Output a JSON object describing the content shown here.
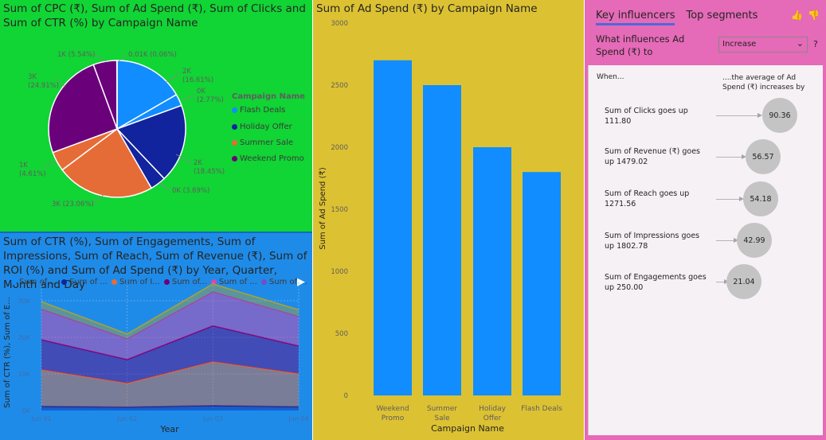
{
  "pie": {
    "title": "Sum of CPC (₹), Sum of Ad Spend (₹), Sum of Clicks and Sum of CTR (%) by Campaign Name",
    "legend_title": "Campaign Name",
    "legend": [
      {
        "label": "Flash Deals",
        "color": "#118dff"
      },
      {
        "label": "Holiday Offer",
        "color": "#12239e"
      },
      {
        "label": "Summer Sale",
        "color": "#e66c37"
      },
      {
        "label": "Weekend Promo",
        "color": "#6b007b"
      }
    ],
    "labels": [
      {
        "line1": "1K (5.54%)",
        "line2": ""
      },
      {
        "line1": "0.01K (0.06%)",
        "line2": ""
      },
      {
        "line1": "2K",
        "line2": "(16.61%)"
      },
      {
        "line1": "0K",
        "line2": "(2.77%)"
      },
      {
        "line1": "3K",
        "line2": "(24.91%)"
      },
      {
        "line1": "2K",
        "line2": "(18.45%)"
      },
      {
        "line1": "1K",
        "line2": "(4.61%)"
      },
      {
        "line1": "0K (3.69%)",
        "line2": ""
      },
      {
        "line1": "3K (23.06%)",
        "line2": ""
      }
    ]
  },
  "area": {
    "title": "Sum of CTR (%), Sum of Engagements, Sum of Impressions, Sum of Reach, Sum of Revenue (₹), Sum of ROI (%) and Sum of Ad Spend (₹) by Year, Quarter, Month and Day",
    "legend": [
      {
        "label": "Sum of ...",
        "color": "#118dff"
      },
      {
        "label": "Sum of ...",
        "color": "#12239e"
      },
      {
        "label": "Sum of I...",
        "color": "#e66c37"
      },
      {
        "label": "Sum of...",
        "color": "#6b007b"
      },
      {
        "label": "Sum of ...",
        "color": "#e044a7"
      },
      {
        "label": "Sum of ...",
        "color": "#744ec2"
      }
    ],
    "more_glyph": "▶",
    "ylabel": "Sum of CTR (%), Sum of E...",
    "xlabel": "Year",
    "yticks": [
      "0K",
      "10K",
      "20K",
      "30K"
    ],
    "xticks": [
      "Jun 01",
      "Jun 02",
      "Jun 03",
      "Jun 04"
    ]
  },
  "bar": {
    "title": "Sum of Ad Spend (₹) by Campaign Name",
    "ylabel": "Sum of Ad Spend (₹)",
    "xlabel": "Campaign Name",
    "yticks": [
      "0",
      "500",
      "1000",
      "1500",
      "2000",
      "2500",
      "3000"
    ],
    "category_lines": [
      [
        "Weekend",
        "Promo"
      ],
      [
        "Summer",
        "Sale"
      ],
      [
        "Holiday",
        "Offer"
      ],
      [
        "Flash Deals"
      ]
    ]
  },
  "chart_data": [
    {
      "type": "pie",
      "title": "Sum of CPC (₹), Sum of Ad Spend (₹), Sum of Clicks and Sum of CTR (%) by Campaign Name",
      "legend_title": "Campaign Name",
      "legend_placement": "right",
      "slices": [
        {
          "campaign": "Flash Deals",
          "value_label": "2K",
          "percent": 16.61,
          "color": "#118dff"
        },
        {
          "campaign": "Flash Deals",
          "value_label": "0K",
          "percent": 2.77,
          "color": "#118dff"
        },
        {
          "campaign": "Holiday Offer",
          "value_label": "2K",
          "percent": 18.45,
          "color": "#12239e"
        },
        {
          "campaign": "Holiday Offer",
          "value_label": "0K",
          "percent": 3.69,
          "color": "#12239e"
        },
        {
          "campaign": "Summer Sale",
          "value_label": "3K",
          "percent": 23.06,
          "color": "#e66c37"
        },
        {
          "campaign": "Summer Sale",
          "value_label": "1K",
          "percent": 4.61,
          "color": "#e66c37"
        },
        {
          "campaign": "Weekend Promo",
          "value_label": "3K",
          "percent": 24.91,
          "color": "#6b007b"
        },
        {
          "campaign": "Weekend Promo",
          "value_label": "1K",
          "percent": 5.54,
          "color": "#6b007b"
        },
        {
          "campaign": "Weekend Promo",
          "value_label": "0.01K",
          "percent": 0.06,
          "color": "#6b007b"
        }
      ]
    },
    {
      "type": "area",
      "title": "Sum of CTR (%), Sum of Engagements, Sum of Impressions, Sum of Reach, Sum of Revenue (₹), Sum of ROI (%) and Sum of Ad Spend (₹) by Year, Quarter, Month and Day",
      "xlabel": "Year",
      "ylabel": "Sum of CTR (%), Sum of E...",
      "x": [
        "Jun 01",
        "Jun 02",
        "Jun 03",
        "Jun 04"
      ],
      "ylim": [
        0,
        35000
      ],
      "stacked": true,
      "grid": true,
      "legend_placement": "top",
      "series": [
        {
          "values": [
            50,
            40,
            55,
            45
          ],
          "color": "#118dff"
        },
        {
          "values": [
            1100,
            900,
            1300,
            1000
          ],
          "color": "#12239e"
        },
        {
          "values": [
            10000,
            6500,
            12000,
            9000
          ],
          "color": "#e66c37"
        },
        {
          "values": [
            8200,
            6500,
            9800,
            7600
          ],
          "color": "#6b007b"
        },
        {
          "values": [
            8300,
            5600,
            9200,
            8000
          ],
          "color": "#e044a7"
        },
        {
          "values": [
            100,
            80,
            120,
            90
          ],
          "color": "#744ec2"
        },
        {
          "values": [
            2000,
            1300,
            2100,
            1800
          ],
          "color": "#a6a23a"
        }
      ]
    },
    {
      "type": "bar",
      "title": "Sum of Ad Spend (₹) by Campaign Name",
      "xlabel": "Campaign Name",
      "ylabel": "Sum of Ad Spend (₹)",
      "categories": [
        "Weekend Promo",
        "Summer Sale",
        "Holiday Offer",
        "Flash Deals"
      ],
      "values": [
        2700,
        2500,
        2000,
        1800
      ],
      "ylim": [
        0,
        3000
      ],
      "color": "#118dff"
    }
  ],
  "ki": {
    "tab_active": "Key influencers",
    "tab_other": "Top segments",
    "thumb_up": "👍",
    "thumb_down": "👎",
    "question": "What influences Ad Spend (₹) to",
    "select_value": "Increase",
    "chevron": "⌄",
    "help": "?",
    "when": "When...",
    "avg": "....the average of Ad Spend (₹) increases by",
    "rows": [
      {
        "label": "Sum of Clicks goes up 111.80",
        "value": "90.36"
      },
      {
        "label": "Sum of Revenue (₹) goes up 1479.02",
        "value": "56.57"
      },
      {
        "label": "Sum of Reach goes up 1271.56",
        "value": "54.18"
      },
      {
        "label": "Sum of Impressions goes up 1802.78",
        "value": "42.99"
      },
      {
        "label": "Sum of Engagements goes up 250.00",
        "value": "21.04"
      }
    ]
  }
}
